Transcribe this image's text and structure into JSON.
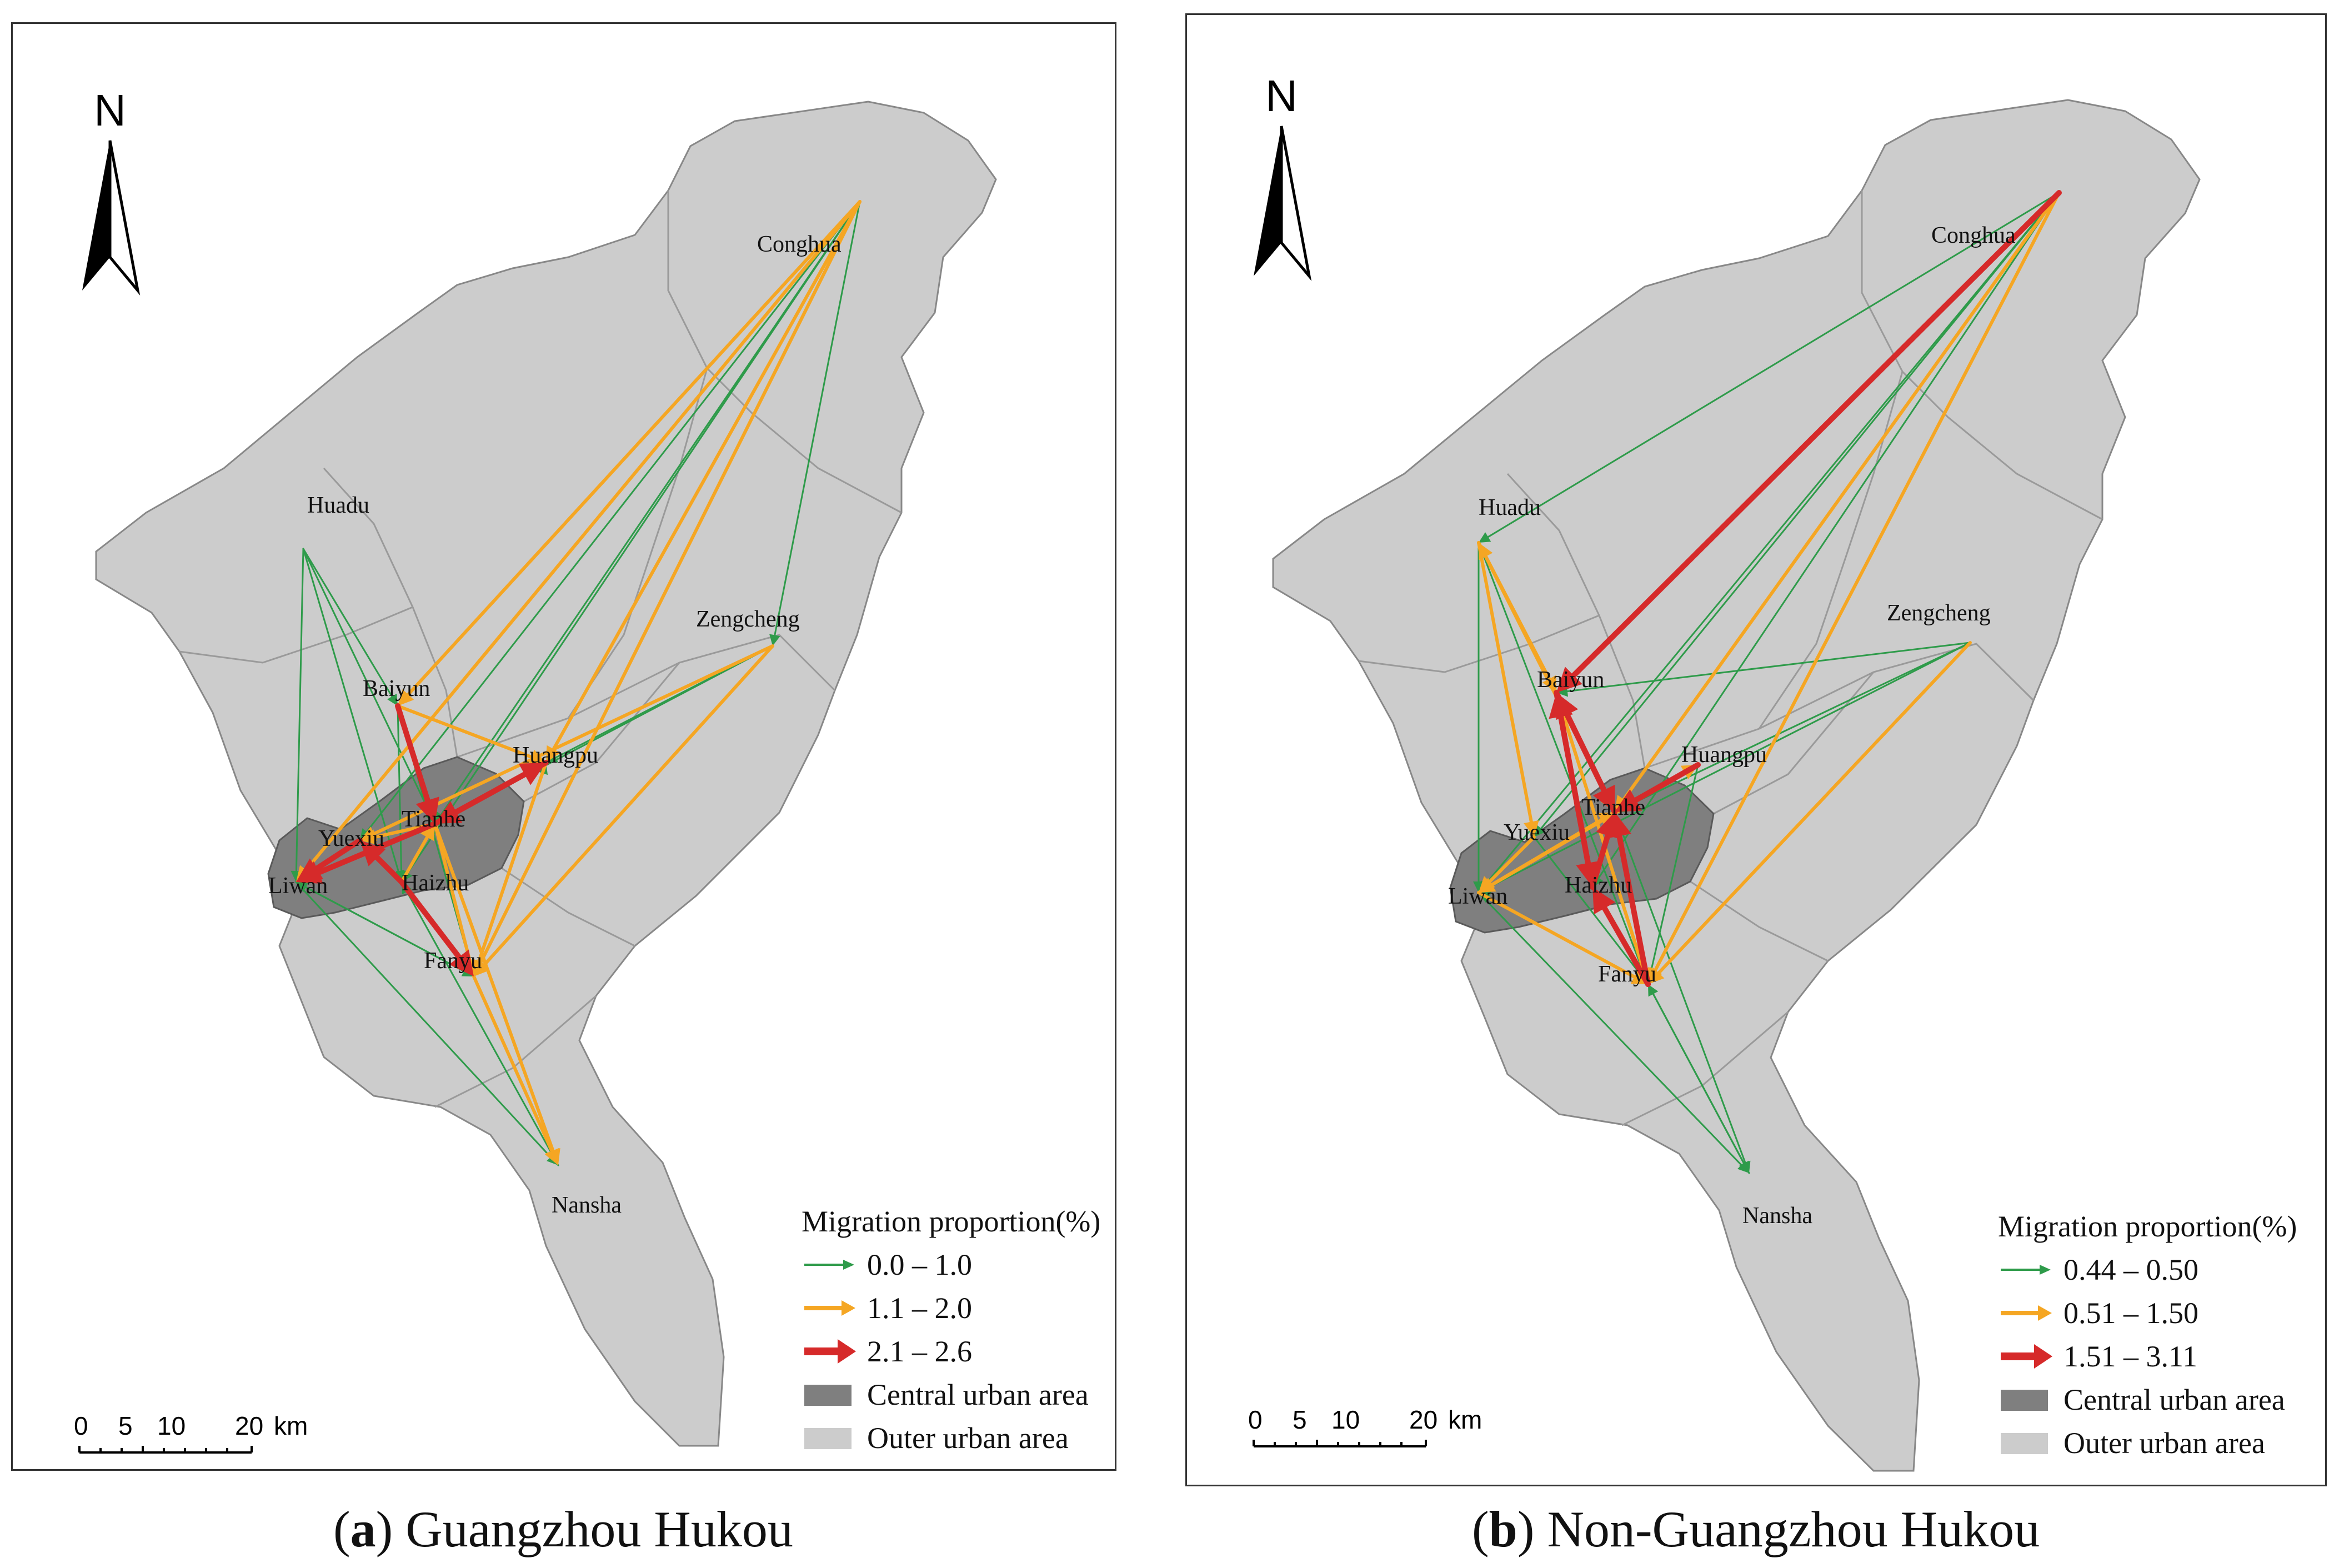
{
  "panels": [
    {
      "id": "a",
      "caption_letter": "a",
      "caption_text": "Guangzhou Hukou",
      "north_label": "N",
      "scale_ticks": [
        "0",
        "5",
        "10",
        "20"
      ],
      "scale_unit": "km",
      "places": [
        "Conghua",
        "Huadu",
        "Zengcheng",
        "Baiyun",
        "Huangpu",
        "Tianhe",
        "Yuexiu",
        "Liwan",
        "Haizhu",
        "Fanyu",
        "Nansha"
      ],
      "legend": {
        "title": "Migration proportion(%)",
        "classes": [
          {
            "label": "0.0 – 1.0",
            "color": "#2e9b4a"
          },
          {
            "label": "1.1 – 2.0",
            "color": "#f5a623"
          },
          {
            "label": "2.1 – 2.6",
            "color": "#d62a2a"
          }
        ],
        "areas": [
          {
            "label": "Central urban area",
            "color": "#7f7f7f"
          },
          {
            "label": "Outer urban area",
            "color": "#cccccc"
          }
        ]
      }
    },
    {
      "id": "b",
      "caption_letter": "b",
      "caption_text": "Non-Guangzhou Hukou",
      "north_label": "N",
      "scale_ticks": [
        "0",
        "5",
        "10",
        "20"
      ],
      "scale_unit": "km",
      "places": [
        "Conghua",
        "Huadu",
        "Zengcheng",
        "Baiyun",
        "Huangpu",
        "Tianhe",
        "Yuexiu",
        "Liwan",
        "Haizhu",
        "Fanyu",
        "Nansha"
      ],
      "legend": {
        "title": "Migration proportion(%)",
        "classes": [
          {
            "label": "0.44 – 0.50",
            "color": "#2e9b4a"
          },
          {
            "label": "0.51 – 1.50",
            "color": "#f5a623"
          },
          {
            "label": "1.51 – 3.11",
            "color": "#d62a2a"
          }
        ],
        "areas": [
          {
            "label": "Central urban area",
            "color": "#7f7f7f"
          },
          {
            "label": "Outer urban area",
            "color": "#cccccc"
          }
        ]
      }
    }
  ]
}
